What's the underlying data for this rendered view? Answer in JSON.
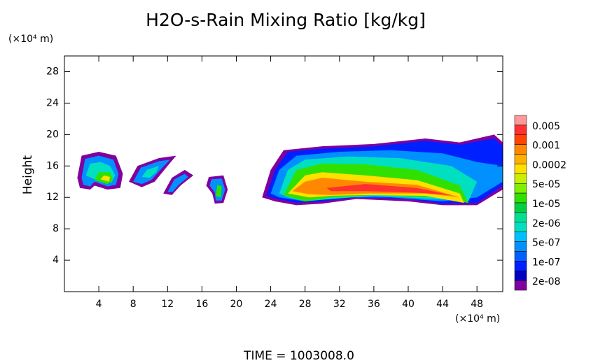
{
  "chart_data": {
    "type": "contour",
    "title": "H2O-s-Rain Mixing Ratio [kg/kg]",
    "x_unit": "(×10⁴ m)",
    "y_unit": "(×10⁴ m)",
    "ylabel": "Height",
    "footer": "TIME = 1003008.0",
    "xlim": [
      0,
      51
    ],
    "ylim": [
      0,
      30
    ],
    "xticks": [
      4,
      8,
      12,
      16,
      20,
      24,
      28,
      32,
      36,
      40,
      44,
      48
    ],
    "yticks": [
      4,
      8,
      12,
      16,
      20,
      24,
      28
    ],
    "colorbar": {
      "colors": [
        "#ff9999",
        "#ff3030",
        "#ff4400",
        "#ff8800",
        "#ffb000",
        "#ffe000",
        "#c8f000",
        "#80f000",
        "#30e000",
        "#00d040",
        "#00e090",
        "#00e0c0",
        "#00c0ff",
        "#0090ff",
        "#0060ff",
        "#0020ff",
        "#0000c0",
        "#8000a0"
      ],
      "ticks": [
        0.005,
        0.001,
        0.0002,
        {
          "value": 5e-05,
          "label": "5e-05"
        },
        {
          "value": 1e-05,
          "label": "1e-05"
        },
        {
          "value": 2e-06,
          "label": "2e-06"
        },
        {
          "value": 5e-07,
          "label": "5e-07"
        },
        {
          "value": 1e-07,
          "label": "1e-07"
        },
        {
          "value": 2e-08,
          "label": "2e-08"
        }
      ]
    }
  }
}
